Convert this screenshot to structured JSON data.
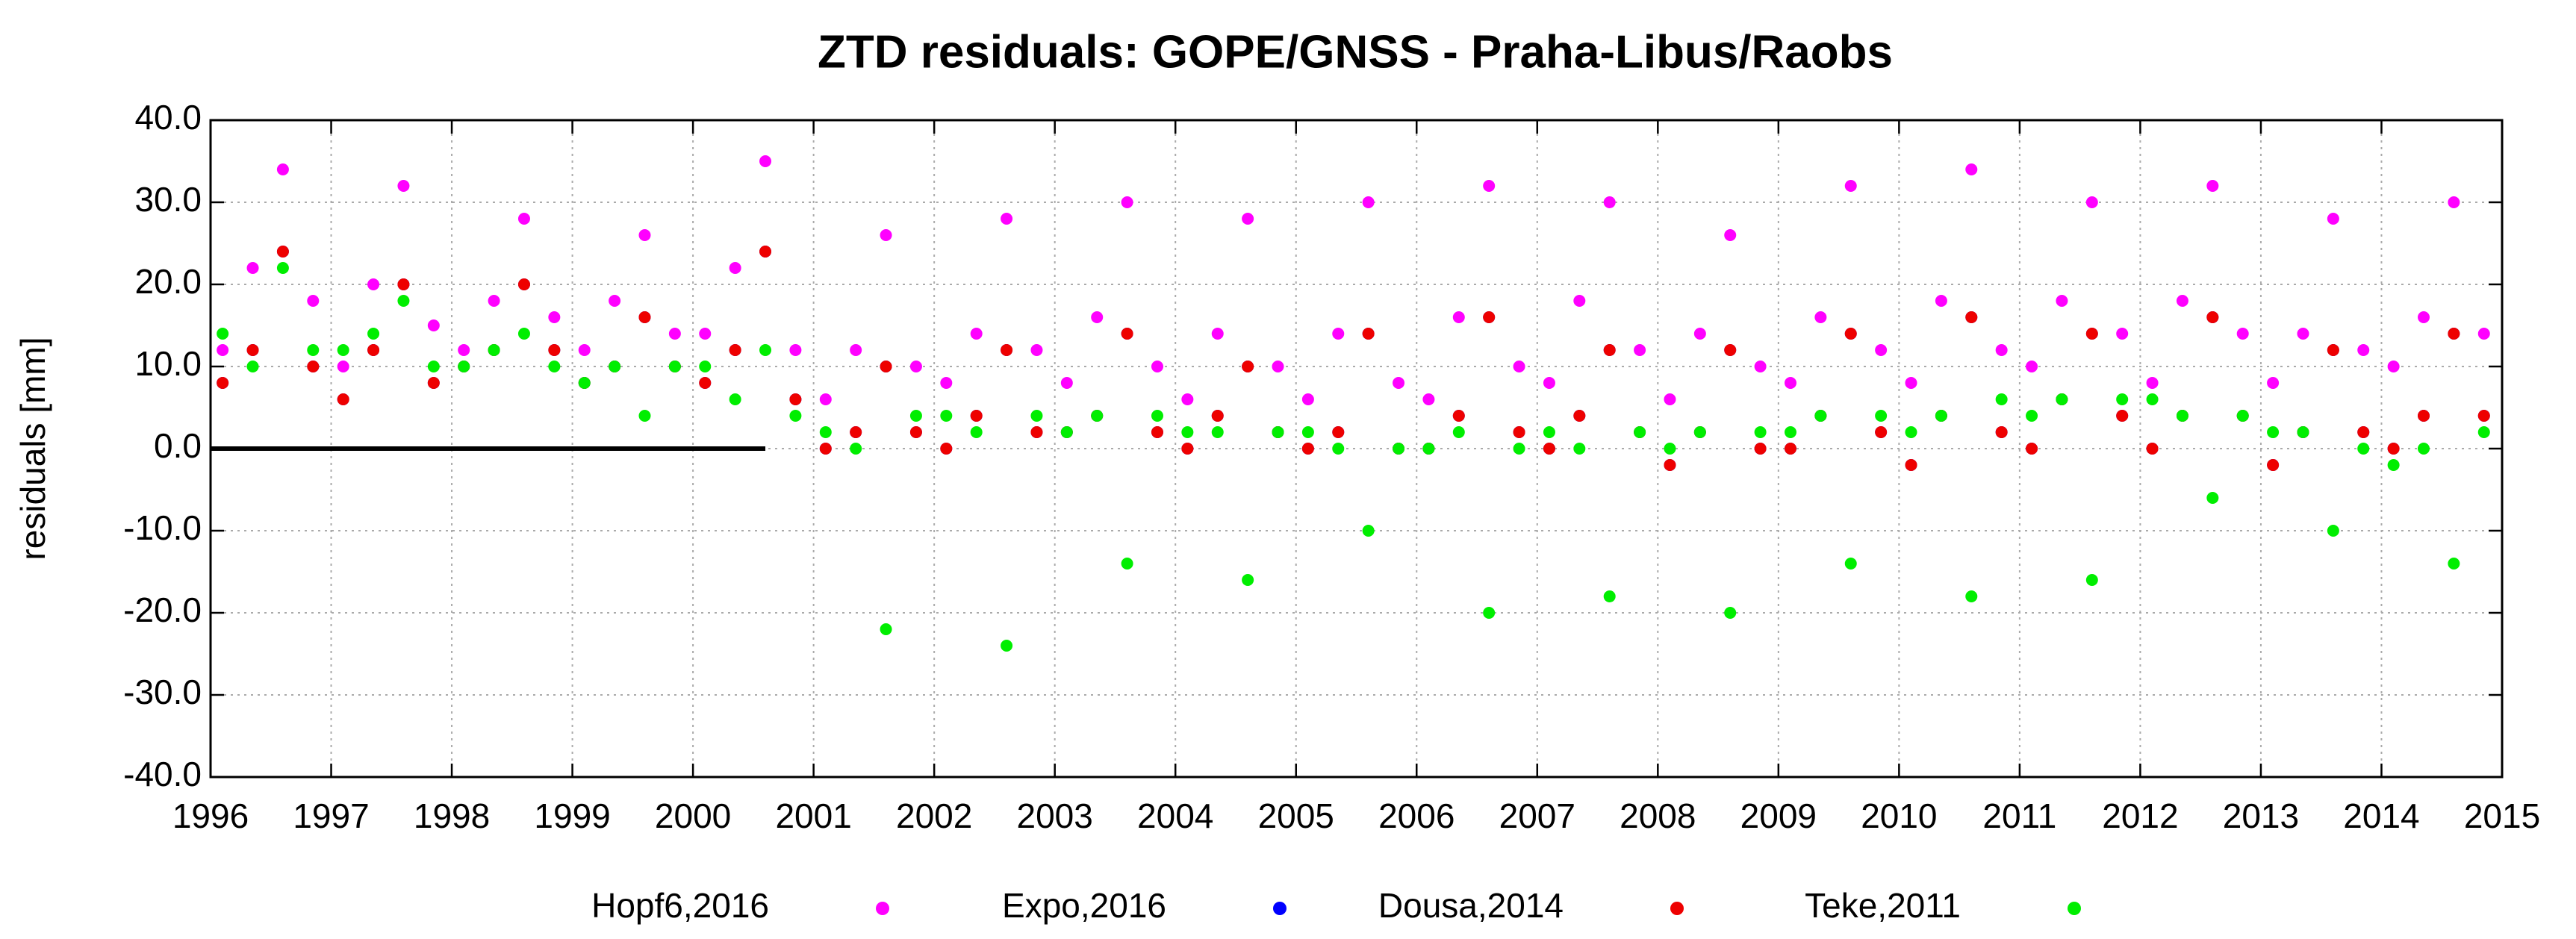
{
  "chart_data": {
    "type": "scatter",
    "title": "ZTD residuals: GOPE/GNSS - Praha-Libus/Raobs",
    "y_label": "residuals [mm]",
    "xlim": [
      1996,
      2015
    ],
    "xticks": [
      1996,
      1997,
      1998,
      1999,
      2000,
      2001,
      2002,
      2003,
      2004,
      2005,
      2006,
      2007,
      2008,
      2009,
      2010,
      2011,
      2012,
      2013,
      2014,
      2015
    ],
    "ylim": [
      -40,
      40
    ],
    "yticks": [
      {
        "value": -40,
        "label": "-40.0"
      },
      {
        "value": -30,
        "label": "-30.0"
      },
      {
        "value": -20,
        "label": "-20.0"
      },
      {
        "value": -10,
        "label": "-10.0"
      },
      {
        "value": 0,
        "label": "0.0"
      },
      {
        "value": 10,
        "label": "10.0"
      },
      {
        "value": 20,
        "label": "20.0"
      },
      {
        "value": 30,
        "label": "30.0"
      },
      {
        "value": 40,
        "label": "40.0"
      }
    ],
    "grid": true,
    "legend": "bottom",
    "x": [
      1996.1,
      1996.35,
      1996.6,
      1996.85,
      1997.1,
      1997.35,
      1997.6,
      1997.85,
      1998.1,
      1998.35,
      1998.6,
      1998.85,
      1999.1,
      1999.35,
      1999.6,
      1999.85,
      2000.1,
      2000.35,
      2000.6,
      2000.85,
      2001.1,
      2001.35,
      2001.6,
      2001.85,
      2002.1,
      2002.35,
      2002.6,
      2002.85,
      2003.1,
      2003.35,
      2003.6,
      2003.85,
      2004.1,
      2004.35,
      2004.6,
      2004.85,
      2005.1,
      2005.35,
      2005.6,
      2005.85,
      2006.1,
      2006.35,
      2006.6,
      2006.85,
      2007.1,
      2007.35,
      2007.6,
      2007.85,
      2008.1,
      2008.35,
      2008.6,
      2008.85,
      2009.1,
      2009.35,
      2009.6,
      2009.85,
      2010.1,
      2010.35,
      2010.6,
      2010.85,
      2011.1,
      2011.35,
      2011.6,
      2011.85,
      2012.1,
      2012.35,
      2012.6,
      2012.85,
      2013.1,
      2013.35,
      2013.6,
      2013.85,
      2014.1,
      2014.35,
      2014.6,
      2014.85
    ],
    "series": [
      {
        "name": "Hopf6,2016",
        "color": "#ff00ff",
        "values": [
          12,
          22,
          34,
          18,
          10,
          20,
          32,
          15,
          12,
          18,
          28,
          16,
          12,
          18,
          26,
          14,
          14,
          22,
          35,
          12,
          6,
          12,
          26,
          10,
          8,
          14,
          28,
          12,
          8,
          16,
          30,
          10,
          6,
          14,
          28,
          10,
          6,
          14,
          30,
          8,
          6,
          16,
          32,
          10,
          8,
          18,
          30,
          12,
          6,
          14,
          26,
          10,
          8,
          16,
          32,
          12,
          8,
          18,
          34,
          12,
          10,
          18,
          30,
          14,
          8,
          18,
          32,
          14,
          8,
          14,
          28,
          12,
          10,
          16,
          30,
          14
        ]
      },
      {
        "name": "Expo,2016",
        "color": "#0000ff",
        "values": [
          8,
          12,
          24,
          10,
          6,
          12,
          20,
          8,
          10,
          12,
          20,
          12,
          8,
          10,
          16,
          10,
          8,
          12,
          24,
          6,
          0,
          2,
          10,
          2,
          0,
          4,
          12,
          2,
          2,
          4,
          14,
          2,
          0,
          4,
          10,
          2,
          0,
          2,
          14,
          0,
          0,
          4,
          16,
          2,
          0,
          4,
          12,
          2,
          -2,
          2,
          12,
          0,
          0,
          4,
          14,
          2,
          -2,
          4,
          16,
          2,
          0,
          6,
          14,
          4,
          0,
          4,
          16,
          4,
          -2,
          2,
          12,
          2,
          0,
          4,
          14,
          4
        ]
      },
      {
        "name": "Dousa,2014",
        "color": "#ee0000",
        "values": [
          8,
          12,
          24,
          10,
          6,
          12,
          20,
          8,
          10,
          12,
          20,
          12,
          8,
          10,
          16,
          10,
          8,
          12,
          24,
          6,
          0,
          2,
          10,
          2,
          0,
          4,
          12,
          2,
          2,
          4,
          14,
          2,
          0,
          4,
          10,
          2,
          0,
          2,
          14,
          0,
          0,
          4,
          16,
          2,
          0,
          4,
          12,
          2,
          -2,
          2,
          12,
          0,
          0,
          4,
          14,
          2,
          -2,
          4,
          16,
          2,
          0,
          6,
          14,
          4,
          0,
          4,
          16,
          4,
          -2,
          2,
          12,
          2,
          0,
          4,
          14,
          4
        ]
      },
      {
        "name": "Teke,2011",
        "color": "#00ee00",
        "values": [
          14,
          10,
          22,
          12,
          12,
          14,
          18,
          10,
          10,
          12,
          14,
          10,
          8,
          10,
          4,
          10,
          10,
          6,
          12,
          4,
          2,
          0,
          -22,
          4,
          4,
          2,
          -24,
          4,
          2,
          4,
          -14,
          4,
          2,
          2,
          -16,
          2,
          2,
          0,
          -10,
          0,
          0,
          2,
          -20,
          0,
          2,
          0,
          -18,
          2,
          0,
          2,
          -20,
          2,
          2,
          4,
          -14,
          4,
          2,
          4,
          -18,
          6,
          4,
          6,
          -16,
          6,
          6,
          4,
          -6,
          4,
          2,
          2,
          -10,
          0,
          -2,
          0,
          -14,
          2
        ]
      }
    ],
    "line_segment": {
      "x": [
        1996,
        2000.6
      ],
      "values": [
        0,
        0
      ],
      "color": "#000000"
    }
  }
}
